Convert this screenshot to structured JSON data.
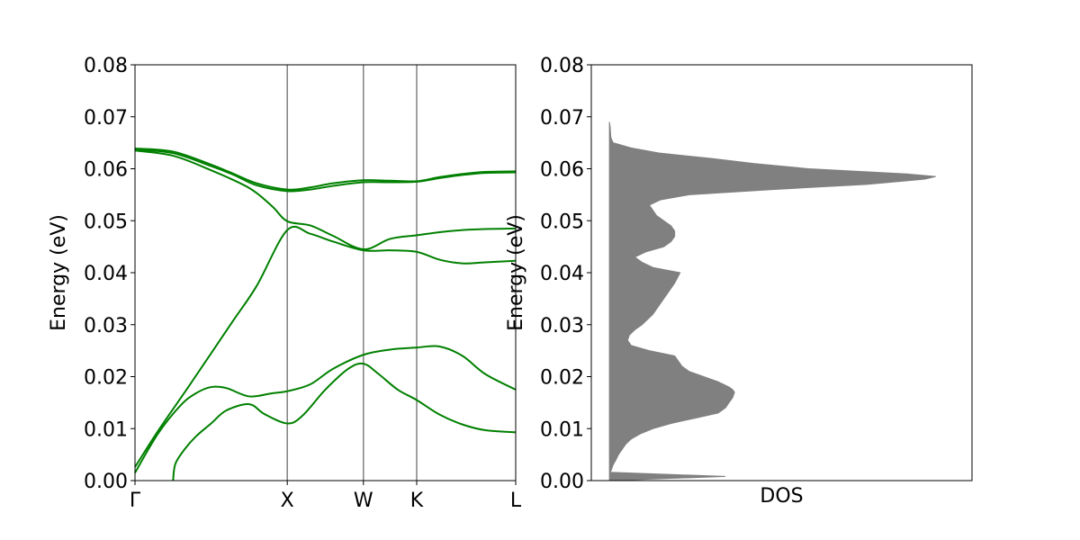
{
  "colors": {
    "band_line": "#008000",
    "dos_fill": "#808080",
    "hsym_line": "#808080",
    "axes": "#000000",
    "background": "#ffffff"
  },
  "chart_data": [
    {
      "type": "line",
      "ylabel": "Energy (eV)",
      "xlabel": "",
      "ylim": [
        0.0,
        0.08
      ],
      "yticks": [
        "0.00",
        "0.01",
        "0.02",
        "0.03",
        "0.04",
        "0.05",
        "0.06",
        "0.07",
        "0.08"
      ],
      "xlim": [
        0,
        5.0
      ],
      "xticks": [
        {
          "label": "Γ",
          "x": 0.0
        },
        {
          "label": "X",
          "x": 2.0
        },
        {
          "label": "W",
          "x": 3.0
        },
        {
          "label": "K",
          "x": 3.7
        },
        {
          "label": "L",
          "x": 5.0
        }
      ],
      "high_symmetry_points": [
        2.0,
        3.0,
        3.7
      ],
      "zero_line": 0.0,
      "grid": false,
      "series": [
        {
          "x": [
            0.0,
            0.3,
            0.7,
            1.0,
            1.3,
            1.6,
            2.0,
            2.3,
            2.6,
            3.0,
            3.35,
            3.7,
            4.0,
            4.3,
            4.6,
            5.0
          ],
          "y": [
            0.0026,
            0.0095,
            0.018,
            0.0245,
            0.031,
            0.0375,
            0.0482,
            0.0475,
            0.046,
            0.0443,
            0.0443,
            0.044,
            0.0425,
            0.0418,
            0.042,
            0.0423
          ]
        },
        {
          "x": [
            0.0,
            0.3,
            0.6,
            0.8,
            1.0,
            1.2,
            1.5,
            1.8,
            2.0,
            2.3,
            2.6,
            3.0,
            3.35,
            3.7,
            4.0,
            4.3,
            4.6,
            5.0
          ],
          "y": [
            0.0015,
            0.009,
            0.0145,
            0.0168,
            0.018,
            0.0178,
            0.0162,
            0.0168,
            0.0172,
            0.0185,
            0.0215,
            0.0242,
            0.0252,
            0.0256,
            0.0258,
            0.024,
            0.0205,
            0.0175
          ]
        },
        {
          "x": [
            0.5,
            0.53,
            0.65,
            0.8,
            1.0,
            1.2,
            1.5,
            1.7,
            2.0,
            2.2,
            2.5,
            2.8,
            3.0,
            3.2,
            3.45,
            3.7,
            4.0,
            4.3,
            4.6,
            5.0
          ],
          "y": [
            0.0,
            0.0032,
            0.006,
            0.0085,
            0.011,
            0.0135,
            0.0147,
            0.0128,
            0.011,
            0.0125,
            0.0175,
            0.0215,
            0.0225,
            0.0205,
            0.0175,
            0.0155,
            0.0127,
            0.0108,
            0.0097,
            0.0093
          ]
        },
        {
          "x": [
            0.0,
            0.5,
            1.0,
            1.5,
            1.8,
            2.0,
            2.3,
            2.6,
            3.0,
            3.35,
            3.7,
            4.0,
            4.3,
            4.6,
            5.0
          ],
          "y": [
            0.0635,
            0.0625,
            0.0597,
            0.0563,
            0.0528,
            0.0499,
            0.0491,
            0.0471,
            0.0445,
            0.0465,
            0.0472,
            0.0478,
            0.0482,
            0.0484,
            0.0485
          ]
        },
        {
          "x": [
            0.0,
            0.5,
            1.0,
            1.3,
            1.6,
            2.0,
            2.3,
            2.6,
            3.0,
            3.35,
            3.7,
            4.0,
            4.3,
            4.6,
            5.0
          ],
          "y": [
            0.0637,
            0.063,
            0.0605,
            0.0588,
            0.0568,
            0.0557,
            0.056,
            0.0567,
            0.0574,
            0.0574,
            0.0575,
            0.0582,
            0.0588,
            0.0592,
            0.0593
          ]
        },
        {
          "x": [
            0.0,
            0.5,
            1.0,
            1.3,
            1.6,
            2.0,
            2.3,
            2.6,
            3.0,
            3.35,
            3.7,
            4.0,
            4.3,
            4.6,
            5.0
          ],
          "y": [
            0.0639,
            0.0633,
            0.0608,
            0.059,
            0.0572,
            0.056,
            0.0564,
            0.0572,
            0.0578,
            0.0577,
            0.0576,
            0.0584,
            0.059,
            0.0594,
            0.0595
          ]
        }
      ]
    },
    {
      "type": "area",
      "ylabel": "Energy (eV)",
      "xlabel": "DOS",
      "ylim": [
        0.0,
        0.08
      ],
      "yticks": [
        "0.00",
        "0.01",
        "0.02",
        "0.03",
        "0.04",
        "0.05",
        "0.06",
        "0.07",
        "0.08"
      ],
      "xlim": [
        -0.05,
        1.0
      ],
      "grid": false,
      "energy": [
        0.0,
        0.0008,
        0.0016,
        0.002,
        0.003,
        0.004,
        0.005,
        0.006,
        0.007,
        0.008,
        0.009,
        0.01,
        0.011,
        0.012,
        0.013,
        0.014,
        0.015,
        0.016,
        0.017,
        0.0175,
        0.018,
        0.019,
        0.02,
        0.021,
        0.022,
        0.023,
        0.024,
        0.025,
        0.026,
        0.027,
        0.028,
        0.029,
        0.03,
        0.032,
        0.034,
        0.036,
        0.038,
        0.04,
        0.041,
        0.042,
        0.043,
        0.044,
        0.045,
        0.046,
        0.047,
        0.048,
        0.049,
        0.05,
        0.051,
        0.052,
        0.053,
        0.054,
        0.055,
        0.056,
        0.057,
        0.058,
        0.0585,
        0.059,
        0.06,
        0.061,
        0.062,
        0.063,
        0.064,
        0.065,
        0.066,
        0.068,
        0.069
      ],
      "dos": [
        0.0,
        0.32,
        0.002,
        0.005,
        0.01,
        0.018,
        0.025,
        0.035,
        0.045,
        0.06,
        0.085,
        0.12,
        0.17,
        0.235,
        0.3,
        0.32,
        0.33,
        0.34,
        0.345,
        0.34,
        0.33,
        0.3,
        0.26,
        0.22,
        0.2,
        0.19,
        0.18,
        0.11,
        0.06,
        0.05,
        0.055,
        0.07,
        0.09,
        0.12,
        0.14,
        0.16,
        0.18,
        0.195,
        0.12,
        0.09,
        0.07,
        0.1,
        0.15,
        0.17,
        0.18,
        0.18,
        0.17,
        0.15,
        0.13,
        0.12,
        0.11,
        0.14,
        0.22,
        0.45,
        0.71,
        0.87,
        0.9,
        0.82,
        0.55,
        0.4,
        0.28,
        0.14,
        0.06,
        0.01,
        0.004,
        0.002,
        0.0
      ]
    }
  ]
}
